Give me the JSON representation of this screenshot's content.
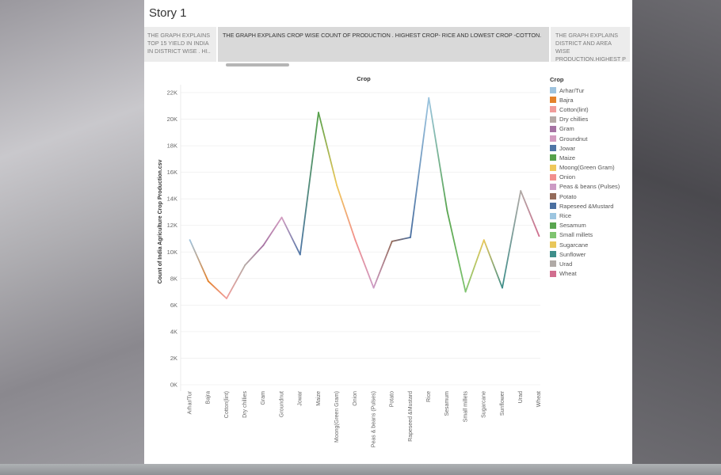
{
  "story": {
    "title": "Story 1",
    "captions": [
      "THE GRAPH EXPLAINS TOP 15 YIELD IN INDIA IN DISTRICT WISE . HI..",
      "THE GRAPH EXPLAINS  CROP WISE COUNT OF PRODUCTION . HIGHEST CROP- RICE AND LOWEST CROP -COTTON.",
      "THE GRAPH EXPLAINS DISTRICT AND AREA WISE PRODUCTION.HIGHEST P"
    ]
  },
  "chart_data": {
    "type": "line",
    "title": "Crop",
    "xlabel": "",
    "ylabel": "Count of India Agriculture Crop Production.csv",
    "ylim": [
      0,
      22000
    ],
    "yticks": [
      0,
      2000,
      4000,
      6000,
      8000,
      10000,
      12000,
      14000,
      16000,
      18000,
      20000,
      22000
    ],
    "ytick_labels": [
      "0K",
      "2K",
      "4K",
      "6K",
      "8K",
      "10K",
      "12K",
      "14K",
      "16K",
      "18K",
      "20K",
      "22K"
    ],
    "grid": true,
    "legend_position": "right",
    "legend_title": "Crop",
    "categories": [
      "Arhar/Tur",
      "Bajra",
      "Cotton(lint)",
      "Dry chillies",
      "Gram",
      "Groundnut",
      "Jowar",
      "Maize",
      "Moong(Green Gram)",
      "Onion",
      "Peas & beans (Pulses)",
      "Potato",
      "Rapeseed &Mustard",
      "Rice",
      "Sesamum",
      "Small millets",
      "Sugarcane",
      "Sunflower",
      "Urad",
      "Wheat"
    ],
    "values": [
      10900,
      7800,
      6500,
      9000,
      10500,
      12600,
      9800,
      20500,
      15000,
      10900,
      7300,
      10800,
      11100,
      21600,
      13100,
      7000,
      10900,
      7300,
      14600,
      11200
    ],
    "colors": [
      "#9ec3de",
      "#e4822b",
      "#f19c9a",
      "#b5aaa6",
      "#a673a3",
      "#d39cc0",
      "#4f76a6",
      "#56a14b",
      "#efc85a",
      "#f28f8d",
      "#cc9ac4",
      "#946b5a",
      "#4a6fa0",
      "#9cc5e0",
      "#59a550",
      "#7fc470",
      "#e9c75a",
      "#3e8e8a",
      "#b0aaa6",
      "#d16d8e"
    ]
  }
}
